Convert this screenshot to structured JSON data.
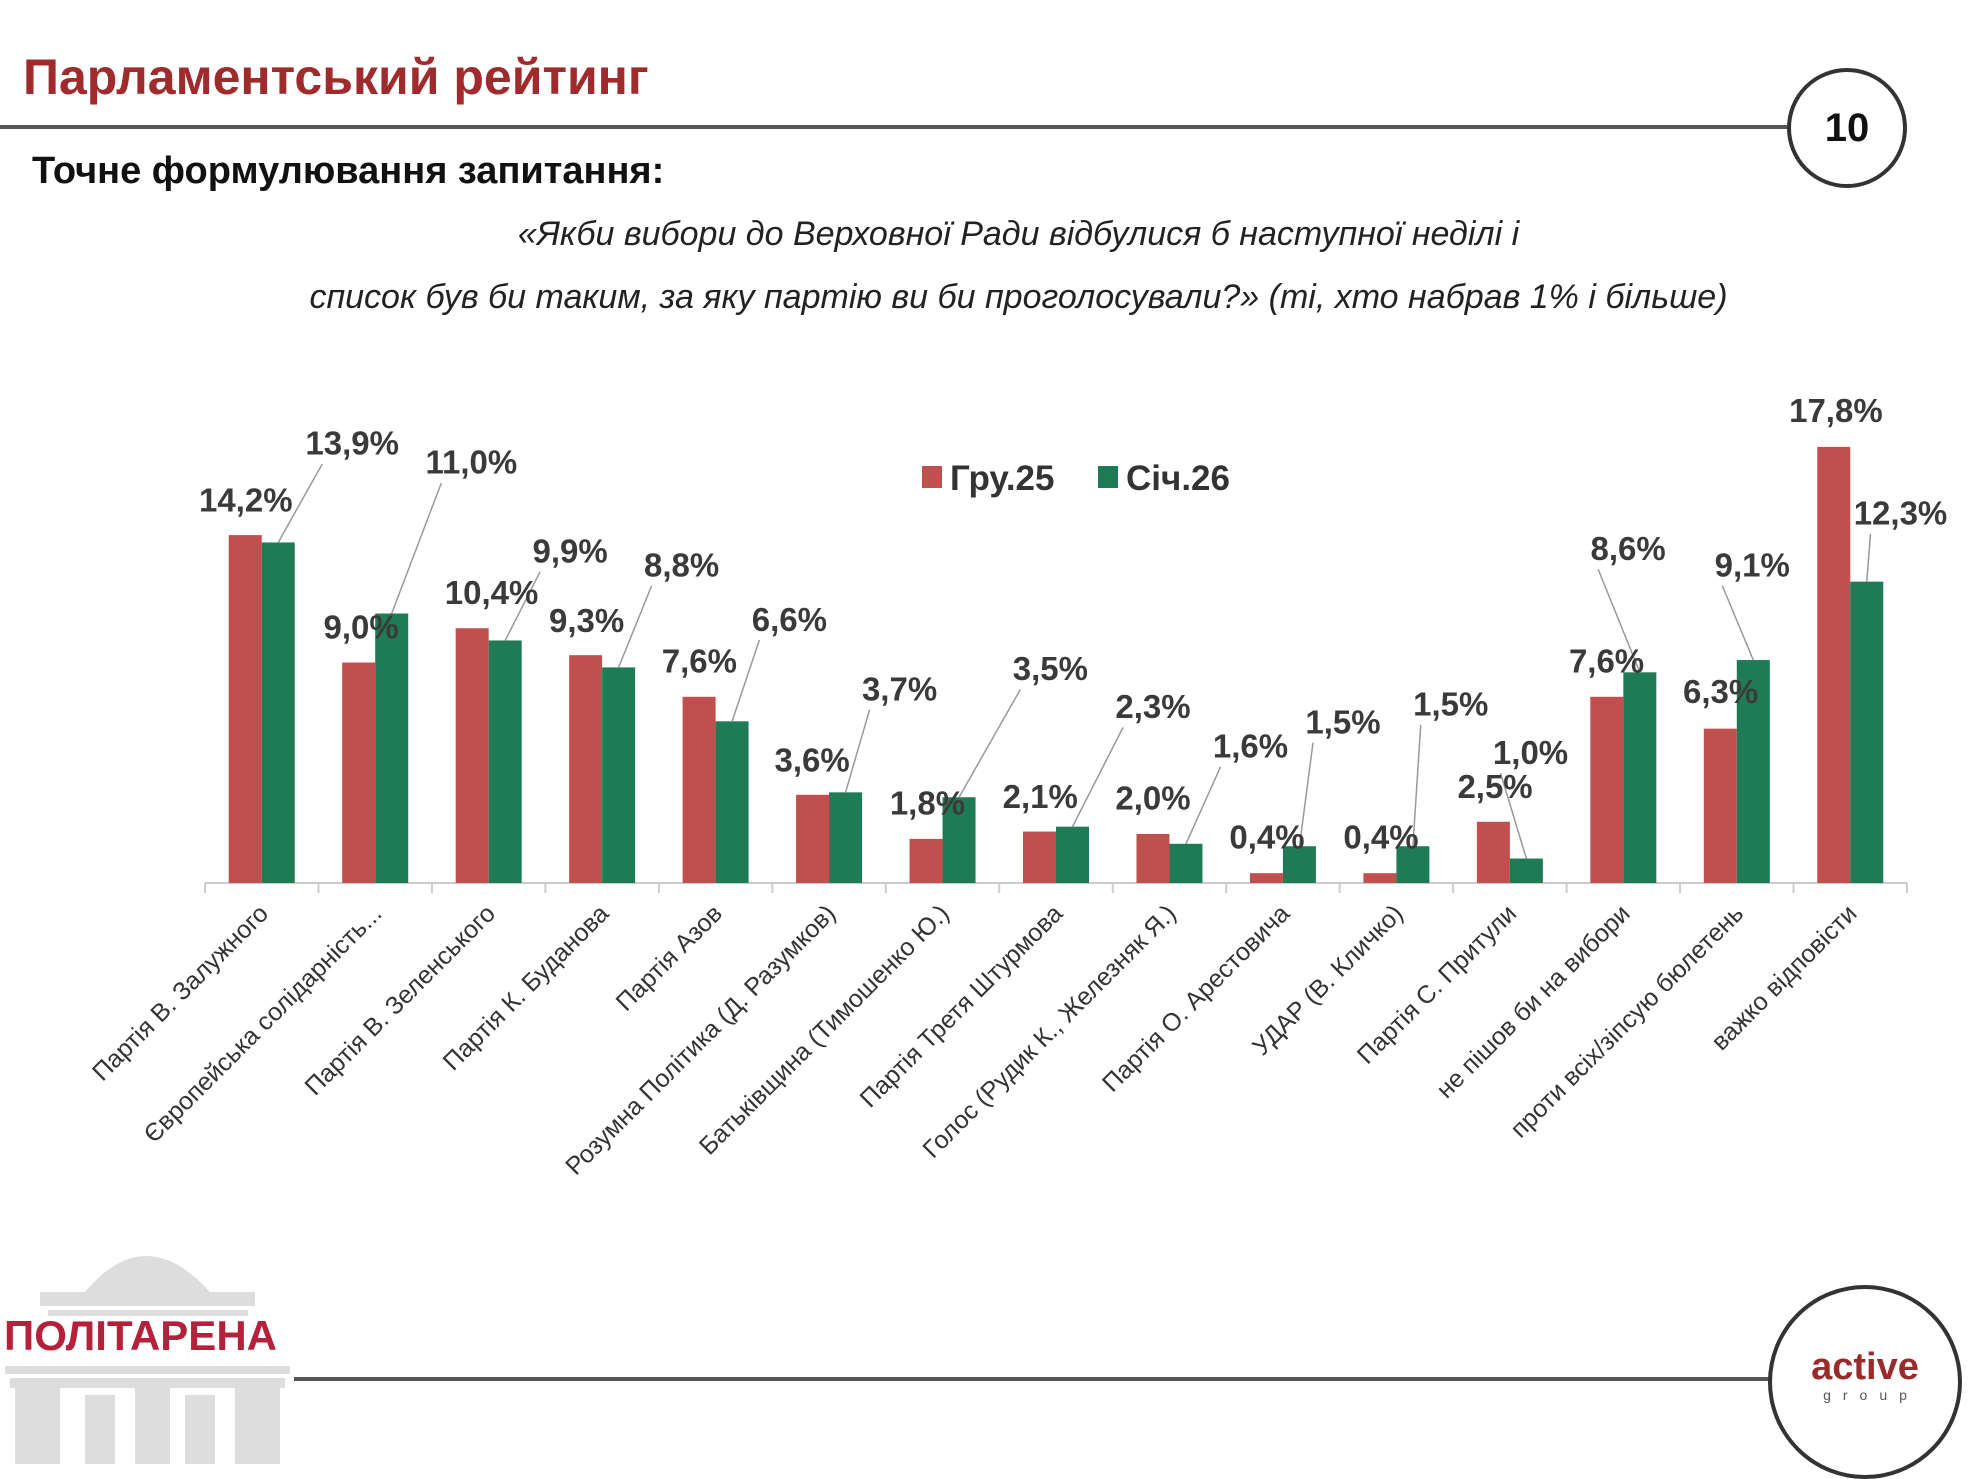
{
  "header": {
    "title": "Парламентський рейтинг",
    "page_number": "10"
  },
  "question": {
    "label": "Точне формулювання запитання:",
    "line1": "«Якби вибори до Верховної Ради відбулися б наступної неділі і",
    "line2": "список був би таким, за яку партію ви би проголосували?» (ті, хто набрав 1% і більше)"
  },
  "footer": {
    "logo_left": "ПОЛІТАРЕНА",
    "logo_right_main": "active",
    "logo_right_sub": "group"
  },
  "chart_data": {
    "type": "bar",
    "title": "",
    "xlabel": "",
    "ylabel": "",
    "ylim": [
      0,
      18
    ],
    "grid": false,
    "legend_position": "top-center",
    "categories": [
      "Партія В. Залужного",
      "Європейська солідарність...",
      "Партія В. Зеленського",
      "Партія К. Буданова",
      "Партія Азов",
      "Розумна Політика (Д. Разумков)",
      "Батьківщина (Тимошенко Ю.)",
      "Партія Третя Штурмова",
      "Голос (Рудик К., Железняк Я.)",
      "Партія О. Арестовича",
      "УДАР (В. Кличко)",
      "Партія С. Притули",
      "не пішов би на вибори",
      "проти всіх/зіпсую бюлетень",
      "важко відповісти"
    ],
    "series": [
      {
        "name": "Гру.25",
        "color": "#c0504d",
        "values": [
          14.2,
          9.0,
          10.4,
          9.3,
          7.6,
          3.6,
          1.8,
          2.1,
          2.0,
          0.4,
          0.4,
          2.5,
          7.6,
          6.3,
          17.8
        ],
        "labels": [
          "14,2%",
          "9,0%",
          "10,4%",
          "9,3%",
          "7,6%",
          "3,6%",
          "1,8%",
          "2,1%",
          "2,0%",
          "0,4%",
          "0,4%",
          "2,5%",
          "7,6%",
          "6,3%",
          "17,8%"
        ]
      },
      {
        "name": "Січ.26",
        "color": "#1e7b55",
        "values": [
          13.9,
          11.0,
          9.9,
          8.8,
          6.6,
          3.7,
          3.5,
          2.3,
          1.6,
          1.5,
          1.5,
          1.0,
          8.6,
          9.1,
          12.3
        ],
        "labels": [
          "13,9%",
          "11,0%",
          "9,9%",
          "8,8%",
          "6,6%",
          "3,7%",
          "3,5%",
          "2,3%",
          "1,6%",
          "1,5%",
          "1,5%",
          "1,0%",
          "8,6%",
          "9,1%",
          "12,3%"
        ]
      }
    ]
  }
}
